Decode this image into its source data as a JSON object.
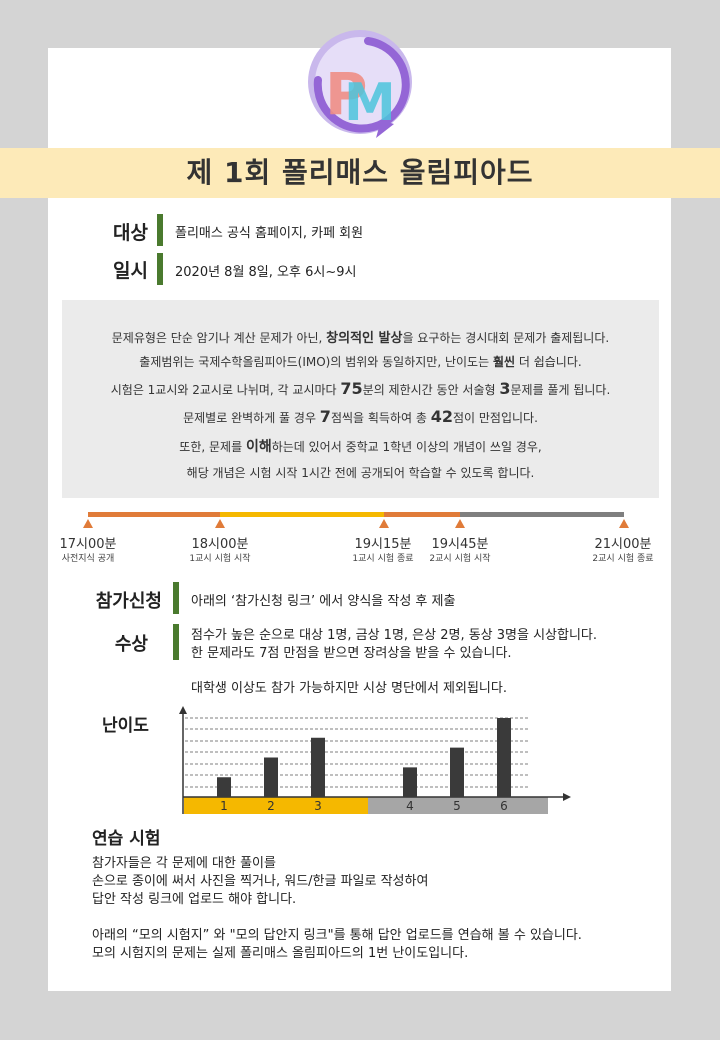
{
  "title": "제 1회 폴리매스 올림피아드",
  "logo": {
    "text": "PM",
    "icon": "pm-logo-icon"
  },
  "target": {
    "label": "대상",
    "value": "폴리매스 공식 홈페이지, 카페 회원"
  },
  "date": {
    "label": "일시",
    "value": "2020년 8월 8일, 오후 6시~9시"
  },
  "info": {
    "line1_a": "문제유형은 단순 암기나 계산 문제가 아닌, ",
    "line1_b": "창의적인 발상",
    "line1_c": "을 요구하는 경시대회 문제가 출제됩니다.",
    "line2_a": "출제범위는 국제수학올림피아드(IMO)의  범위와 동일하지만,  난이도는 ",
    "line2_b": "훨씬",
    "line2_c": " 더 쉽습니다.",
    "line3_a": "시험은 1교시와 2교시로 나뉘며, 각 교시마다 ",
    "line3_b": "75",
    "line3_c": "분의 제한시간  동안 서술형 ",
    "line3_d": "3",
    "line3_e": "문제를 풀게 됩니다.",
    "line4_a": "문제별로 완벽하게 풀 경우 ",
    "line4_b": "7",
    "line4_c": "점씩을 획득하여 총 ",
    "line4_d": "42",
    "line4_e": "점이 만점입니다.",
    "line5_a": "또한, 문제를 ",
    "line5_b": "이해",
    "line5_c": "하는데 있어서 중학교 1학년 이상의 개념이 쓰일 경우,",
    "line6": "해당 개념은 시험 시작 1시간 전에 공개되어 학습할 수 있도록 합니다."
  },
  "timeline": [
    {
      "time": "17시00분",
      "desc": "사전지식 공개"
    },
    {
      "time": "18시00분",
      "desc": "1교시 시험 시작"
    },
    {
      "time": "19시15분",
      "desc": "1교시 시험 종료"
    },
    {
      "time": "19시45분",
      "desc": "2교시 시험 시작"
    },
    {
      "time": "21시00분",
      "desc": "2교시 시험 종료"
    }
  ],
  "colors": {
    "accent_green": "#4a7a2e",
    "timeline_orange": "#e07b39",
    "timeline_yellow": "#f5b800",
    "timeline_gray": "#7f7f7f",
    "banner": "#fdeab8"
  },
  "apply": {
    "label": "참가신청",
    "value": "아래의 ‘참가신청 링크’ 에서 양식을 작성 후 제출"
  },
  "prize": {
    "label": "수상",
    "line1": "점수가 높은 순으로 대상 1명, 금상 1명, 은상 2명, 동상 3명을 시상합니다.",
    "line2": "한 문제라도 7점 만점을 받으면 장려상을 받을 수 있습니다.",
    "note": "대학생 이상도 참가 가능하지만 시상 명단에서 제외됩니다."
  },
  "difficulty_label": "난이도",
  "chart_data": {
    "type": "bar",
    "categories": [
      "1",
      "2",
      "3",
      "4",
      "5",
      "6"
    ],
    "values": [
      1,
      2,
      3,
      1.5,
      2.5,
      4
    ],
    "ylim": [
      0,
      4.5
    ],
    "grid": true,
    "title": "",
    "xlabel": "",
    "ylabel": ""
  },
  "practice": {
    "title": "연습 시험",
    "p1": "참가자들은 각 문제에 대한 풀이를",
    "p2": "손으로 종이에 써서 사진을 찍거나, 워드/한글 파일로 작성하여",
    "p3": "답안 작성 링크에 업로드 해야 합니다.",
    "p4": "아래의 “모의 시험지” 와 \"모의 답안지 링크\"를 통해 답안 업로드를 연습해 볼 수 있습니다.",
    "p5": "모의 시험지의 문제는 실제 폴리매스 올림피아드의 1번 난이도입니다."
  }
}
